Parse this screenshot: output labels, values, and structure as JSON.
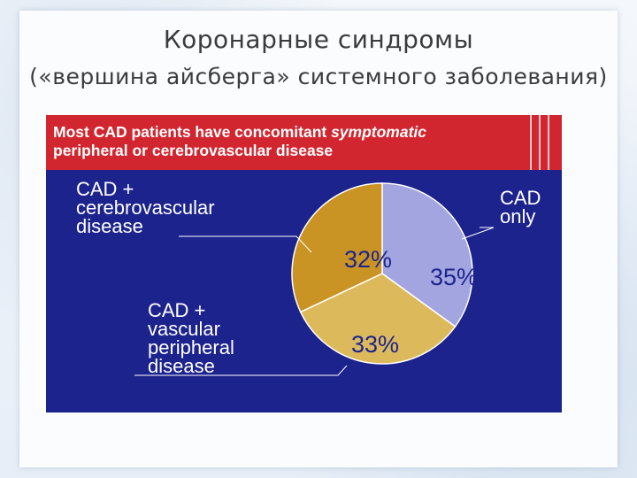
{
  "slide": {
    "title_line1": "Коронарные синдромы",
    "title_line2": "(«вершина айсберга» системного заболевания)"
  },
  "banner": {
    "text_part1": "Most CAD patients have concomitant ",
    "text_emphasis": "symptomatic",
    "text_part2": "peripheral or cerebrovascular disease",
    "background_color": "#d1262f"
  },
  "chart_data": {
    "type": "pie",
    "title": "Most CAD patients have concomitant symptomatic peripheral or cerebrovascular disease",
    "slices": [
      {
        "label": "CAD only",
        "value": 35,
        "display": "35%",
        "color": "#a3a5e0"
      },
      {
        "label": "CAD + vascular peripheral disease",
        "value": 33,
        "display": "33%",
        "color": "#dcba5c"
      },
      {
        "label": "CAD + cerebrovascular disease",
        "value": 32,
        "display": "32%",
        "color": "#c99424"
      }
    ],
    "start_angle_deg": 0,
    "direction": "clockwise",
    "background_color": "#1d238d"
  },
  "labels": {
    "cad_only": "CAD\nonly",
    "cerebro": "CAD +\ncerebrovascular\ndisease",
    "peripheral": "CAD +\nvascular\nperipheral\ndisease"
  }
}
